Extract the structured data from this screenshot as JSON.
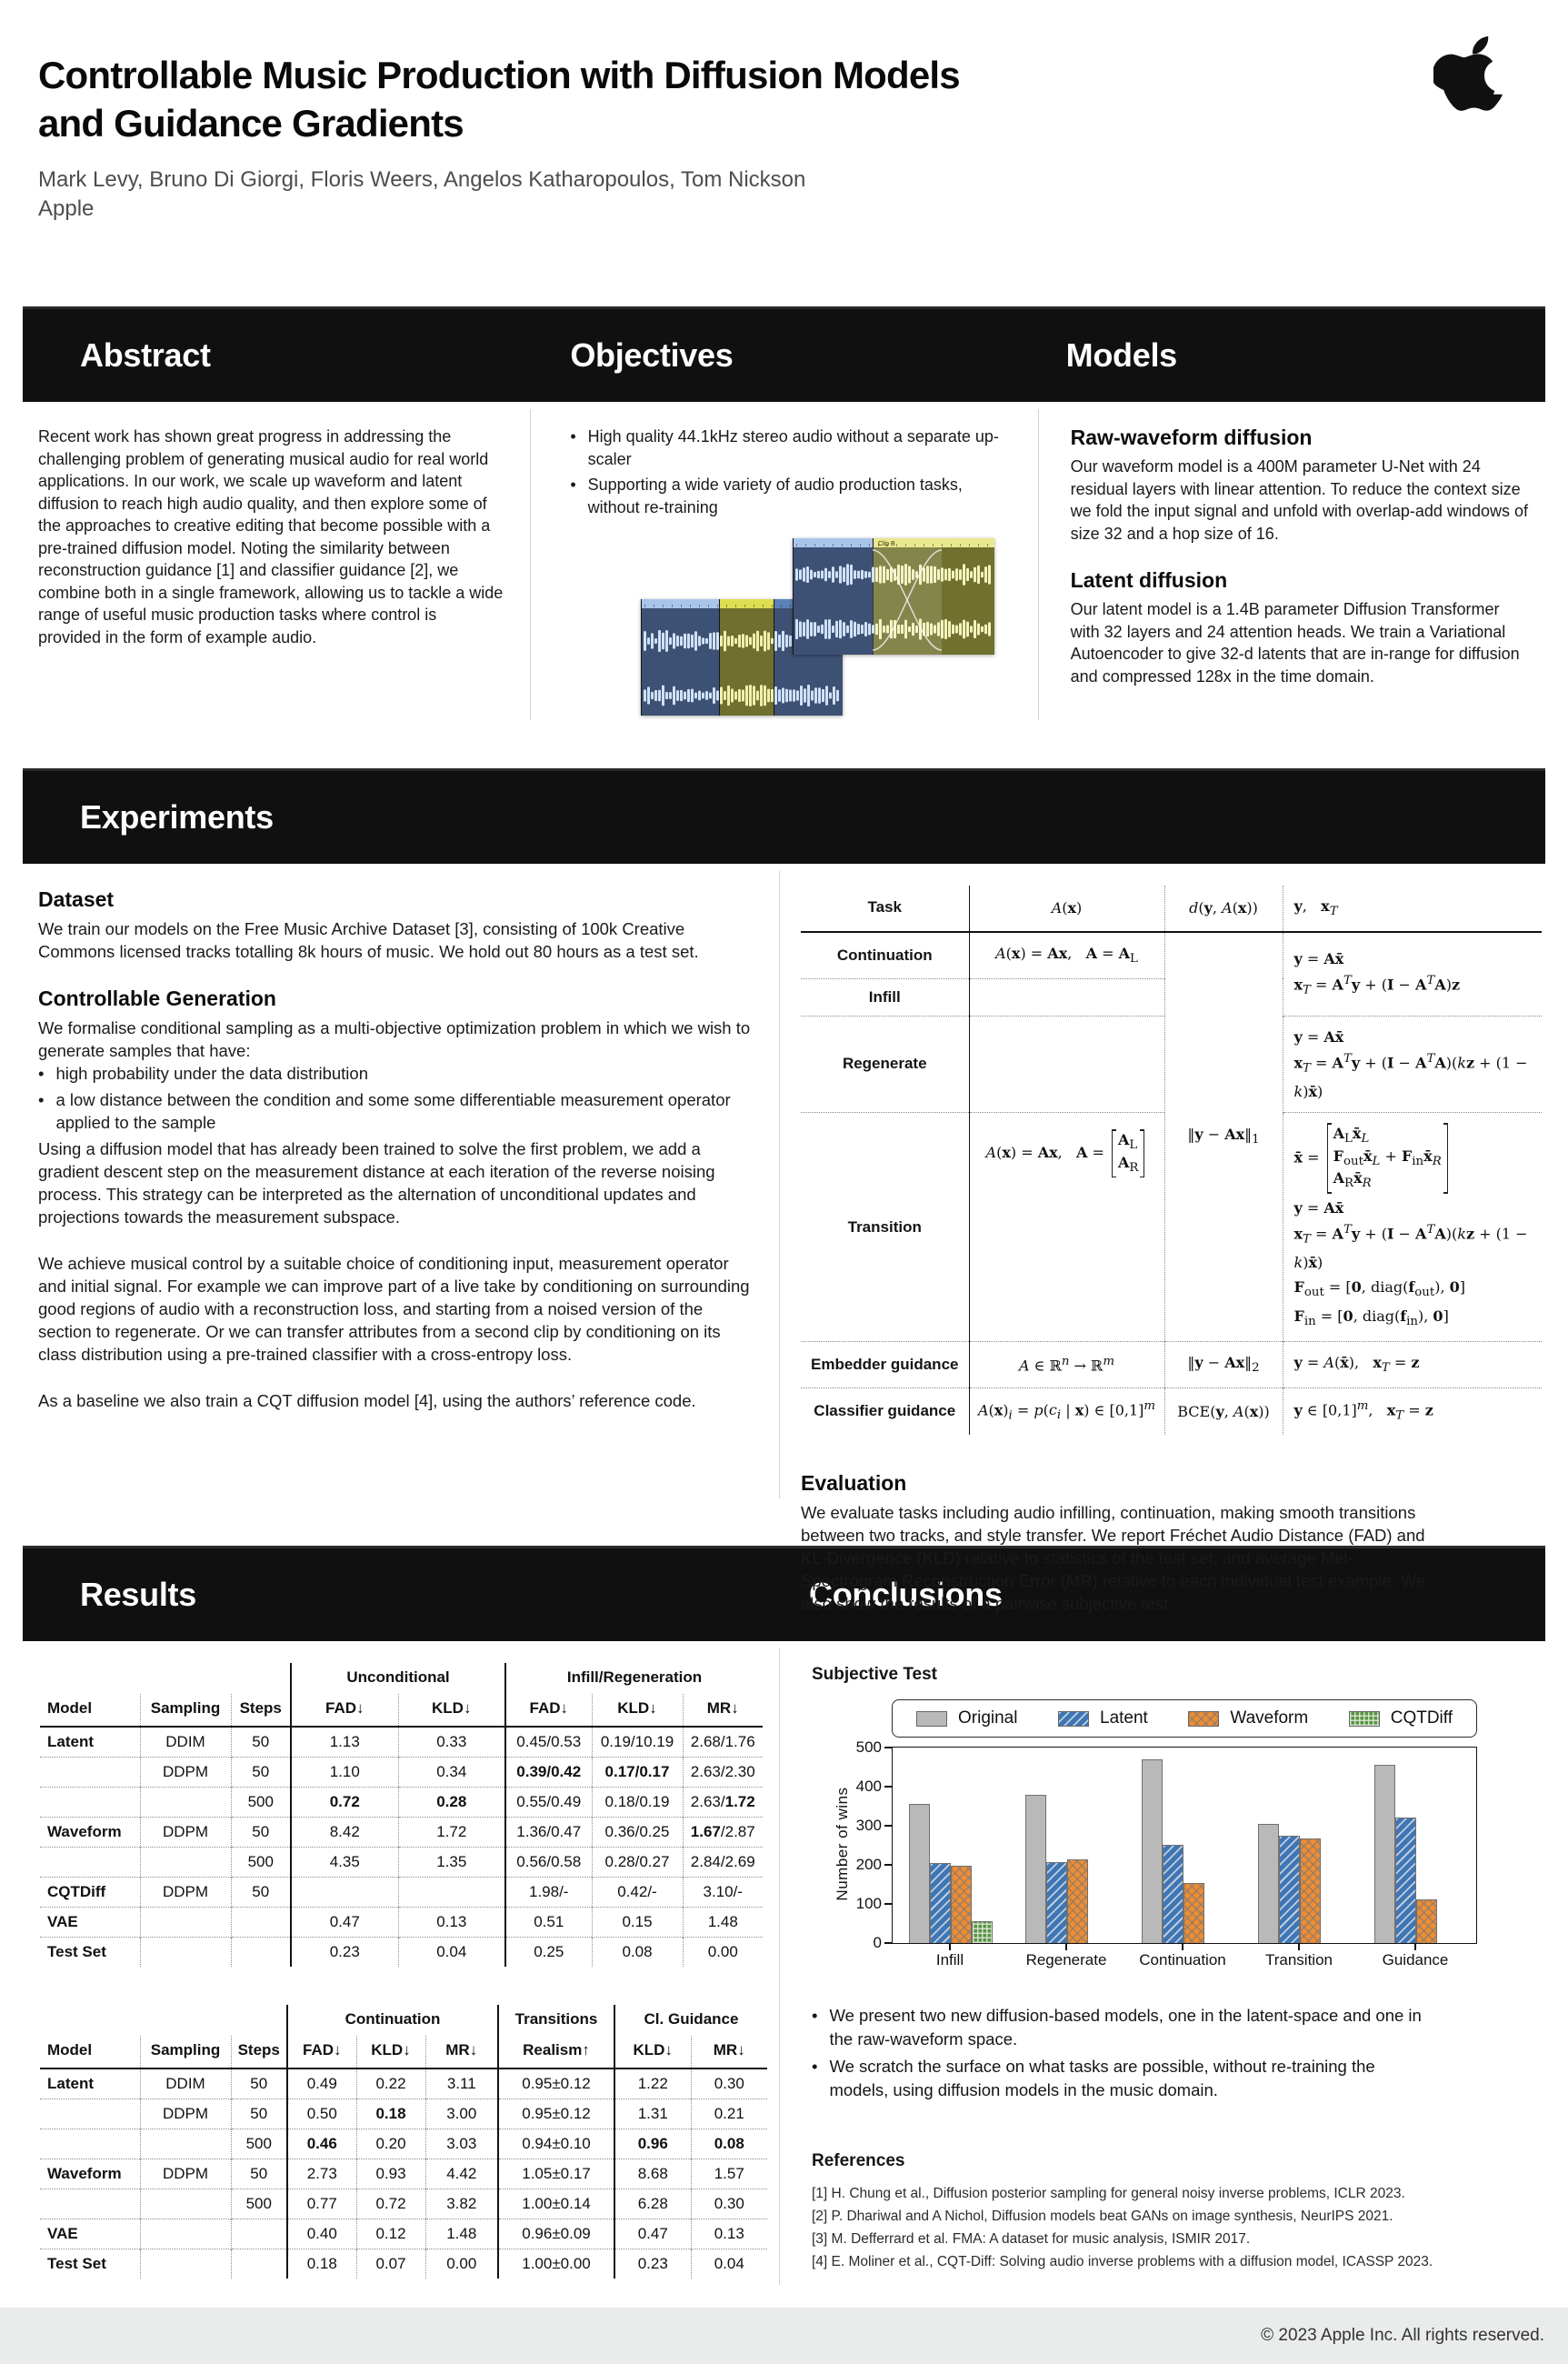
{
  "header": {
    "title_line1": "Controllable Music Production with Diffusion Models",
    "title_line2": "and Guidance Gradients",
    "authors": "Mark Levy, Bruno Di Giorgi, Floris Weers, Angelos Katharopoulos, Tom Nickson",
    "affiliation": "Apple",
    "logo_icon": "apple-logo"
  },
  "sections": {
    "abstract": {
      "heading": "Abstract",
      "body": "Recent work has shown great progress in addressing the challenging problem of generating musical audio for real world applications. In our work, we scale up waveform and latent diffusion to reach high audio quality, and then explore some of the approaches to creative editing that become possible with a pre-trained diffusion model. Noting the similarity between reconstruction guidance [1] and classifier guidance [2], we combine both in a single framework, allowing us to tackle a wide range of useful music production tasks where control is provided in the form of example audio."
    },
    "objectives": {
      "heading": "Objectives",
      "bullets": [
        "High quality 44.1kHz stereo audio without a separate up-scaler",
        "Supporting a wide variety of audio production tasks, without re-training"
      ],
      "illustration": "daw-waveform-clips"
    },
    "models": {
      "heading": "Models",
      "subsections": [
        {
          "title": "Raw-waveform diffusion",
          "body": "Our waveform model is a 400M parameter U-Net with 24 residual layers with linear attention. To reduce the context size we fold the input signal and unfold with overlap-add windows of size 32 and a hop size of 16."
        },
        {
          "title": "Latent diffusion",
          "body": "Our latent model is a 1.4B parameter Diffusion Transformer with 32 layers and 24 attention heads. We train a Variational Autoencoder to give 32-d latents that are in-range for diffusion and compressed 128x in the time domain."
        }
      ]
    },
    "experiments": {
      "heading": "Experiments",
      "dataset_title": "Dataset",
      "dataset_body": "We train our models on the Free Music Archive Dataset [3], consisting of 100k Creative Commons licensed tracks totalling 8k hours of music. We hold out 80 hours as a test set.",
      "controllable_title": "Controllable Generation",
      "controllable_intro": "We formalise conditional sampling as a multi-objective optimization problem in which we wish to generate samples that have:",
      "controllable_bullets": [
        "high probability under the data distribution",
        "a low distance between the condition and some some differentiable measurement operator applied to the sample"
      ],
      "paragraphs": [
        "Using a diffusion model that has already been trained to solve the first problem, we add a gradient descent step on the measurement distance at each iteration of the reverse noising process. This strategy can be interpreted as the alternation of unconditional updates and projections towards the measurement subspace.",
        "We achieve musical control by a suitable choice of conditioning input, measurement operator and initial signal. For example we can improve part of a live take by conditioning on surrounding good regions of audio with a reconstruction loss, and starting from a noised version of the section to regenerate. Or we can transfer attributes from a second clip by conditioning on its class distribution using a pre-trained classifier with a cross-entropy loss.",
        "As a baseline we also train a CQT diffusion model [4], using the authors’ reference code."
      ],
      "task_table": {
        "col_headers": {
          "task": "Task",
          "a": "<i class='scr'>A</i>(<b>x</b>)",
          "d": "<i>d</i>(<b>y</b>, <i class='scr'>A</i>(<b>x</b>))",
          "y": "<b>y</b>, &nbsp;&nbsp;<b>x</b><sub><i>T</i></sub>"
        },
        "d_merged": "‖<b>y</b> − <b>Ax</b>‖<sub>1</sub>",
        "rows": [
          {
            "task": "Continuation",
            "a": "<i class='scr'>A</i>(<b>x</b>) = <b>Ax</b>, &nbsp;&nbsp;<b>A</b> = <b>A</b><sub>L</sub>",
            "y": "<b>y</b> = <b>Ax̄</b><br><b>x</b><sub><i>T</i></sub> = <b>A</b><sup><i>T</i></sup><b>y</b> + (<b>I</b> − <b>A</b><sup><i>T</i></sup><b>A</b>)<b>z</b>"
          },
          {
            "task": "Infill"
          },
          {
            "task": "Regenerate",
            "y": "<b>y</b> = <b>Ax̄</b><br><b>x</b><sub><i>T</i></sub> = <b>A</b><sup><i>T</i></sup><b>y</b> + (<b>I</b> − <b>A</b><sup><i>T</i></sup><b>A</b>)(<i>k</i><b>z</b> + (1 − <i>k</i>)<b>x̄</b>)"
          },
          {
            "task": "Transition",
            "a": "<i class='scr'>A</i>(<b>x</b>) = <b>Ax</b>, &nbsp;&nbsp;<b>A</b> = <span class='mtx'><span><b>A</b><sub>L</sub></span><span><b>A</b><sub>R</sub></span></span>",
            "y": "<b>x̄</b> = <span class='mtx'><span><b>A</b><sub>L</sub><b>x̄</b><sub><i>L</i></sub></span><span><b>F</b><sub>out</sub><b>x̄</b><sub><i>L</i></sub> + <b>F</b><sub>in</sub><b>x̄</b><sub><i>R</i></sub></span><span><b>A</b><sub>R</sub><b>x̄</b><sub><i>R</i></sub></span></span><br><b>y</b> = <b>Ax̄</b><br><b>x</b><sub><i>T</i></sub> = <b>A</b><sup><i>T</i></sup><b>y</b> + (<b>I</b> − <b>A</b><sup><i>T</i></sup><b>A</b>)(<i>k</i><b>z</b> + (1 − <i>k</i>)<b>x̄</b>)<br><b>F</b><sub>out</sub> = [<b>0</b>, diag(<b>f</b><sub>out</sub>), <b>0</b>]<br><b>F</b><sub>in</sub> = [<b>0</b>, diag(<b>f</b><sub>in</sub>), <b>0</b>]"
          },
          {
            "task": "Embedder guidance",
            "a": "<i class='scr'>A</i> ∈ ℝ<sup><i>n</i></sup> → ℝ<sup><i>m</i></sup>",
            "d": "‖<b>y</b> − <b>Ax</b>‖<sub>2</sub>",
            "y": "<b>y</b> = <i class='scr'>A</i>(<b>x̄</b>), &nbsp;&nbsp;<b>x</b><sub><i>T</i></sub> = <b>z</b>"
          },
          {
            "task": "Classifier guidance",
            "a": "<i class='scr'>A</i>(<b>x</b>)<sub><i>i</i></sub> = <i>p</i>(<i>c<sub>i</sub></i> | <b>x</b>) ∈ [0,1]<sup><i>m</i></sup>",
            "d": "BCE(<b>y</b>, <i class='scr'>A</i>(<b>x</b>))",
            "y": "<b>y</b> ∈ [0,1]<sup><i>m</i></sup>, &nbsp;&nbsp;<b>x</b><sub><i>T</i></sub> = <b>z</b>"
          }
        ]
      },
      "evaluation_title": "Evaluation",
      "evaluation_body": "We evaluate tasks including audio infilling, continuation, making smooth transitions between two tracks, and style transfer. We report Fréchet Audio Distance (FAD) and KL-Divergence (KLD) relative to statistics of the test set, and average Mel-Spectrogram Reconstruction Error (MR) relative to each individual test example. We also show the results of a pairwise subjective test."
    },
    "results": {
      "heading": "Results",
      "table1": {
        "groups": [
          "Unconditional",
          "Infill/Regeneration"
        ],
        "col_headers": [
          "Model",
          "Sampling",
          "Steps",
          "FAD↓",
          "KLD↓",
          "FAD↓",
          "KLD↓",
          "MR↓"
        ],
        "rows": [
          [
            "Latent",
            "DDIM",
            "50",
            "1.13",
            "0.33",
            "0.45/0.53",
            "0.19/10.19",
            "2.68/1.76"
          ],
          [
            "",
            "DDPM",
            "50",
            "1.10",
            "0.34",
            "<b>0.39/0.42</b>",
            "<b>0.17/0.17</b>",
            "2.63/2.30"
          ],
          [
            "",
            "",
            "500",
            "<b>0.72</b>",
            "<b>0.28</b>",
            "0.55/0.49",
            "0.18/0.19",
            "2.63/<b>1.72</b>"
          ],
          [
            "Waveform",
            "DDPM",
            "50",
            "8.42",
            "1.72",
            "1.36/0.47",
            "0.36/0.25",
            "<b>1.67</b>/2.87"
          ],
          [
            "",
            "",
            "500",
            "4.35",
            "1.35",
            "0.56/0.58",
            "0.28/0.27",
            "2.84/2.69"
          ],
          [
            "CQTDiff",
            "DDPM",
            "50",
            "",
            "",
            "1.98/-",
            "0.42/-",
            "3.10/-"
          ],
          [
            "VAE",
            "",
            "",
            "0.47",
            "0.13",
            "0.51",
            "0.15",
            "1.48"
          ],
          [
            "Test Set",
            "",
            "",
            "0.23",
            "0.04",
            "0.25",
            "0.08",
            "0.00"
          ]
        ]
      },
      "table2": {
        "groups": [
          "Continuation",
          "Transitions",
          "Cl. Guidance"
        ],
        "col_headers": [
          "Model",
          "Sampling",
          "Steps",
          "FAD↓",
          "KLD↓",
          "MR↓",
          "Realism↑",
          "KLD↓",
          "MR↓"
        ],
        "rows": [
          [
            "Latent",
            "DDIM",
            "50",
            "0.49",
            "0.22",
            "3.11",
            "0.95±0.12",
            "1.22",
            "0.30"
          ],
          [
            "",
            "DDPM",
            "50",
            "0.50",
            "<b>0.18</b>",
            "3.00",
            "0.95±0.12",
            "1.31",
            "0.21"
          ],
          [
            "",
            "",
            "500",
            "<b>0.46</b>",
            "0.20",
            "3.03",
            "0.94±0.10",
            "<b>0.96</b>",
            "<b>0.08</b>"
          ],
          [
            "Waveform",
            "DDPM",
            "50",
            "2.73",
            "0.93",
            "4.42",
            "1.05±0.17",
            "8.68",
            "1.57"
          ],
          [
            "",
            "",
            "500",
            "0.77",
            "0.72",
            "3.82",
            "1.00±0.14",
            "6.28",
            "0.30"
          ],
          [
            "VAE",
            "",
            "",
            "0.40",
            "0.12",
            "1.48",
            "0.96±0.09",
            "0.47",
            "0.13"
          ],
          [
            "Test Set",
            "",
            "",
            "0.18",
            "0.07",
            "0.00",
            "1.00±0.00",
            "0.23",
            "0.04"
          ]
        ]
      }
    },
    "conclusions": {
      "heading": "Conclusions",
      "subjective_title": "Subjective Test",
      "bullets": [
        "We present two new diffusion-based models, one in the latent-space and one in the raw-waveform space.",
        "We scratch the surface on what tasks are possible, without re-training the models, using diffusion models in the music domain."
      ],
      "references_title": "References",
      "references": [
        "[1] H. Chung et al., Diffusion posterior sampling for general noisy inverse problems, ICLR 2023.",
        "[2] P. Dhariwal and A Nichol, Diffusion models beat GANs on image synthesis, NeurIPS 2021.",
        "[3] M. Defferrard et al. FMA: A dataset for music analysis, ISMIR 2017.",
        "[4] E. Moliner et al., CQT-Diff: Solving audio inverse problems with a diffusion model, ICASSP 2023."
      ]
    }
  },
  "footer": {
    "copyright": "© 2023 Apple Inc. All rights reserved."
  },
  "chart_data": {
    "type": "bar",
    "title": "Subjective Test",
    "ylabel": "Number of wins",
    "xlabel": "",
    "ylim": [
      0,
      500
    ],
    "yticks": [
      0,
      100,
      200,
      300,
      400,
      500
    ],
    "grid": false,
    "legend_position": "top",
    "categories": [
      "Infill",
      "Regenerate",
      "Continuation",
      "Transition",
      "Guidance"
    ],
    "series": [
      {
        "name": "Original",
        "color": "#b9b9b9",
        "hatch": "none",
        "values": [
          355,
          380,
          470,
          305,
          455
        ]
      },
      {
        "name": "Latent",
        "color": "#3f76b5",
        "hatch": "diag",
        "values": [
          205,
          207,
          252,
          275,
          322
        ]
      },
      {
        "name": "Waveform",
        "color": "#ef8d33",
        "hatch": "cross",
        "values": [
          197,
          215,
          153,
          267,
          112
        ]
      },
      {
        "name": "CQTDiff",
        "color": "#55973d",
        "hatch": "grid",
        "values": [
          55,
          null,
          null,
          null,
          null
        ]
      }
    ]
  }
}
